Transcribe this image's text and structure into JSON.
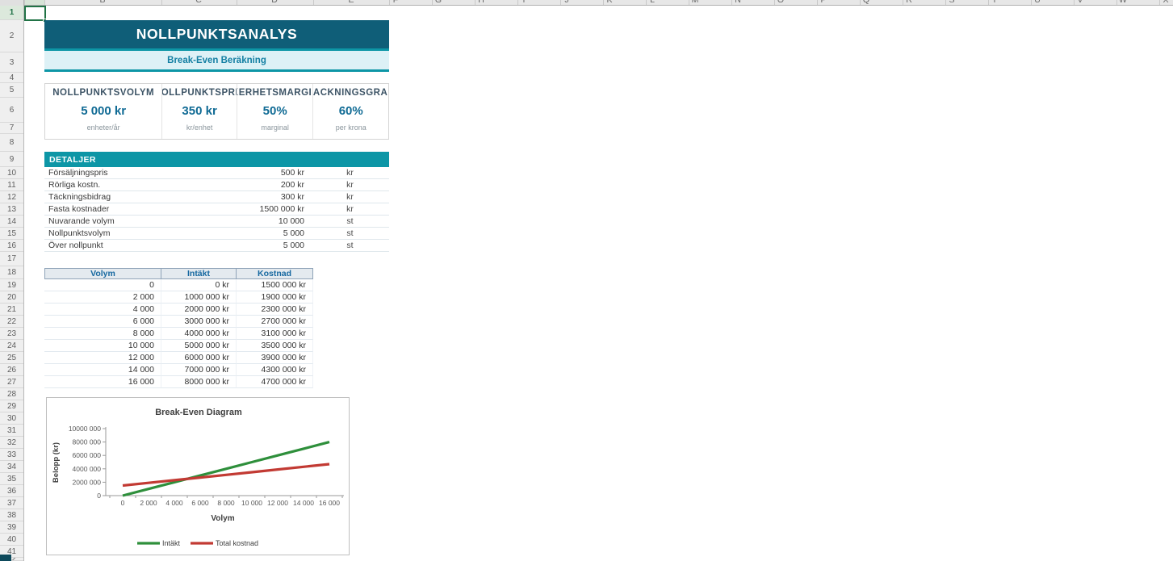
{
  "sheet": {
    "column_letters": [
      "A",
      "B",
      "C",
      "D",
      "E",
      "F",
      "G",
      "H",
      "I",
      "J",
      "K",
      "L",
      "M",
      "N",
      "O",
      "P",
      "Q",
      "R",
      "S",
      "T",
      "U",
      "V",
      "W",
      "X"
    ],
    "row_count": 42,
    "selected_cell": "A1"
  },
  "header": {
    "title": "NOLLPUNKTSANALYS",
    "subtitle": "Break-Even Beräkning"
  },
  "kpis": [
    {
      "label": "NOLLPUNKTSVOLYM",
      "value": "5 000 kr",
      "sublabel": "enheter/år"
    },
    {
      "label": "NOLLPUNKTSPRIS",
      "value": "350 kr",
      "sublabel": "kr/enhet"
    },
    {
      "label": "SÄKERHETSMARGINAL",
      "value": "50%",
      "sublabel": "marginal"
    },
    {
      "label": "TÄCKNINGSGRAD",
      "value": "60%",
      "sublabel": "per krona"
    }
  ],
  "details": {
    "header": "DETALJER",
    "rows": [
      {
        "label": "Försäljningspris",
        "value": "500 kr",
        "unit": "kr"
      },
      {
        "label": "Rörliga kostn.",
        "value": "200 kr",
        "unit": "kr"
      },
      {
        "label": "Täckningsbidrag",
        "value": "300 kr",
        "unit": "kr"
      },
      {
        "label": "Fasta kostnader",
        "value": "1500 000 kr",
        "unit": "kr"
      },
      {
        "label": "Nuvarande volym",
        "value": "10 000",
        "unit": "st"
      },
      {
        "label": "Nollpunktsvolym",
        "value": "5 000",
        "unit": "st"
      },
      {
        "label": "Över nollpunkt",
        "value": "5 000",
        "unit": "st"
      }
    ]
  },
  "volume_table": {
    "columns": [
      "Volym",
      "Intäkt",
      "Kostnad"
    ],
    "rows": [
      [
        "0",
        "0 kr",
        "1500 000 kr"
      ],
      [
        "2 000",
        "1000 000 kr",
        "1900 000 kr"
      ],
      [
        "4 000",
        "2000 000 kr",
        "2300 000 kr"
      ],
      [
        "6 000",
        "3000 000 kr",
        "2700 000 kr"
      ],
      [
        "8 000",
        "4000 000 kr",
        "3100 000 kr"
      ],
      [
        "10 000",
        "5000 000 kr",
        "3500 000 kr"
      ],
      [
        "12 000",
        "6000 000 kr",
        "3900 000 kr"
      ],
      [
        "14 000",
        "7000 000 kr",
        "4300 000 kr"
      ],
      [
        "16 000",
        "8000 000 kr",
        "4700 000 kr"
      ]
    ]
  },
  "chart_data": {
    "type": "line",
    "title": "Break-Even Diagram",
    "xlabel": "Volym",
    "ylabel": "Belopp (kr)",
    "categories": [
      0,
      2000,
      4000,
      6000,
      8000,
      10000,
      12000,
      14000,
      16000
    ],
    "x_tick_labels": [
      "0",
      "2 000",
      "4 000",
      "6 000",
      "8 000",
      "10 000",
      "12 000",
      "14 000",
      "16 000"
    ],
    "ylim": [
      0,
      10000000
    ],
    "y_tick_labels": [
      "0",
      "2000 000",
      "4000 000",
      "6000 000",
      "8000 000",
      "10000 000"
    ],
    "grid": false,
    "legend_position": "bottom",
    "series": [
      {
        "name": "Intäkt",
        "color": "#2E8F3B",
        "values": [
          0,
          1000000,
          2000000,
          3000000,
          4000000,
          5000000,
          6000000,
          7000000,
          8000000
        ]
      },
      {
        "name": "Total kostnad",
        "color": "#C23A33",
        "values": [
          1500000,
          1900000,
          2300000,
          2700000,
          3100000,
          3500000,
          3900000,
          4300000,
          4700000
        ]
      }
    ]
  },
  "colors": {
    "brand_dark": "#0F5E78",
    "brand_teal": "#0D96A6",
    "subtitle_bg": "#DDF1F6",
    "subtitle_text": "#147FA3",
    "kpi_value_text": "#0F6A94",
    "table_header_bg": "#E4EAEF",
    "table_header_text": "#1668A0",
    "selection_green": "#217346",
    "chart_green": "#2E8F3B",
    "chart_red": "#C23A33",
    "axis_gray": "#9A9A9A"
  }
}
